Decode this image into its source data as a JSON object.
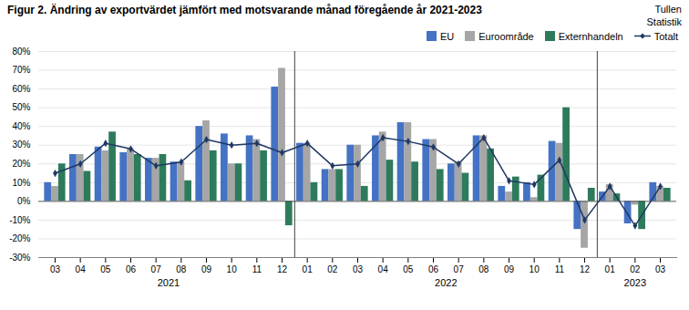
{
  "chart_data": {
    "type": "bar",
    "title": "Figur 2. Ändring av exportvärdet jämfört med motsvarande månad föregående år 2021-2023",
    "annotations": [
      {
        "text": "Tullen\nStatistik"
      },
      {
        "text": "2021",
        "x": 4.5
      },
      {
        "text": "2022",
        "x": 15.5
      },
      {
        "text": "2023",
        "x": 23.0
      }
    ],
    "dividers": [
      9.5,
      21.5
    ],
    "categories": [
      "03",
      "04",
      "05",
      "06",
      "07",
      "08",
      "09",
      "10",
      "11",
      "12",
      "01",
      "02",
      "03",
      "04",
      "05",
      "06",
      "07",
      "08",
      "09",
      "10",
      "11",
      "12",
      "01",
      "02",
      "03"
    ],
    "series": [
      {
        "name": "EU",
        "color": "#4472C4",
        "values": [
          10,
          25,
          29,
          26,
          23,
          21,
          40,
          36,
          35,
          61,
          31,
          17,
          30,
          35,
          42,
          33,
          20,
          35,
          8,
          10,
          32,
          -15,
          5,
          -12,
          10
        ]
      },
      {
        "name": "Euroområde",
        "color": "#A6A6A6",
        "values": [
          8,
          25,
          27,
          28,
          23,
          21,
          43,
          20,
          33,
          71,
          31,
          17,
          30,
          37,
          42,
          33,
          21,
          35,
          5,
          2,
          31,
          -25,
          9,
          -2,
          8
        ]
      },
      {
        "name": "Externhandeln",
        "color": "#2E7B5C",
        "values": [
          20,
          16,
          37,
          25,
          25,
          11,
          27,
          20,
          27,
          -13,
          10,
          17,
          8,
          22,
          21,
          17,
          15,
          28,
          13,
          14,
          50,
          7,
          4,
          -15,
          7
        ]
      },
      {
        "name": "Totalt",
        "type": "line",
        "marker": "diamond",
        "color": "#1F3864",
        "values": [
          15,
          20,
          31,
          28,
          19,
          21,
          33,
          30,
          31,
          26,
          31,
          19,
          20,
          34,
          32,
          29,
          20,
          34,
          11,
          9,
          22,
          -10,
          8,
          -13,
          8
        ]
      }
    ],
    "ylim": [
      -30,
      80
    ],
    "yticks": [
      {
        "value": -30,
        "label": "-30%"
      },
      {
        "value": -20,
        "label": "-20%"
      },
      {
        "value": -10,
        "label": "-10%"
      },
      {
        "value": 0,
        "label": "0%"
      },
      {
        "value": 10,
        "label": "10%"
      },
      {
        "value": 20,
        "label": "20%"
      },
      {
        "value": 30,
        "label": "30%"
      },
      {
        "value": 40,
        "label": "40%"
      },
      {
        "value": 50,
        "label": "50%"
      },
      {
        "value": 60,
        "label": "60%"
      },
      {
        "value": 70,
        "label": "70%"
      },
      {
        "value": 80,
        "label": "80%"
      }
    ],
    "grid": true,
    "legend": "upper right"
  }
}
